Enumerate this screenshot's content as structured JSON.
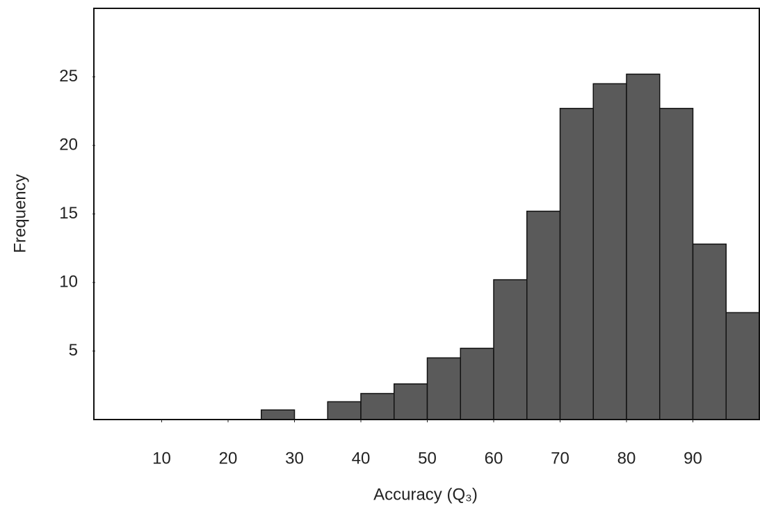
{
  "chart_data": {
    "type": "histogram",
    "x_label": "Accuracy (Q₃)",
    "y_label": "Frequency",
    "bins": [
      25,
      30,
      35,
      40,
      45,
      50,
      55,
      60,
      65,
      70,
      75,
      80,
      85,
      90,
      95,
      100
    ],
    "values": [
      0.7,
      0,
      1.3,
      1.9,
      2.6,
      4.5,
      5.2,
      10.2,
      15.2,
      22.7,
      24.5,
      25.2,
      22.7,
      12.8,
      7.8
    ],
    "color": "#5a5a5a",
    "xlim": [
      0,
      100
    ],
    "xticks": [
      10,
      20,
      30,
      40,
      50,
      60,
      70,
      80,
      90
    ],
    "ylim": [
      0,
      30
    ],
    "yticks": [
      5,
      10,
      15,
      20,
      25
    ]
  }
}
